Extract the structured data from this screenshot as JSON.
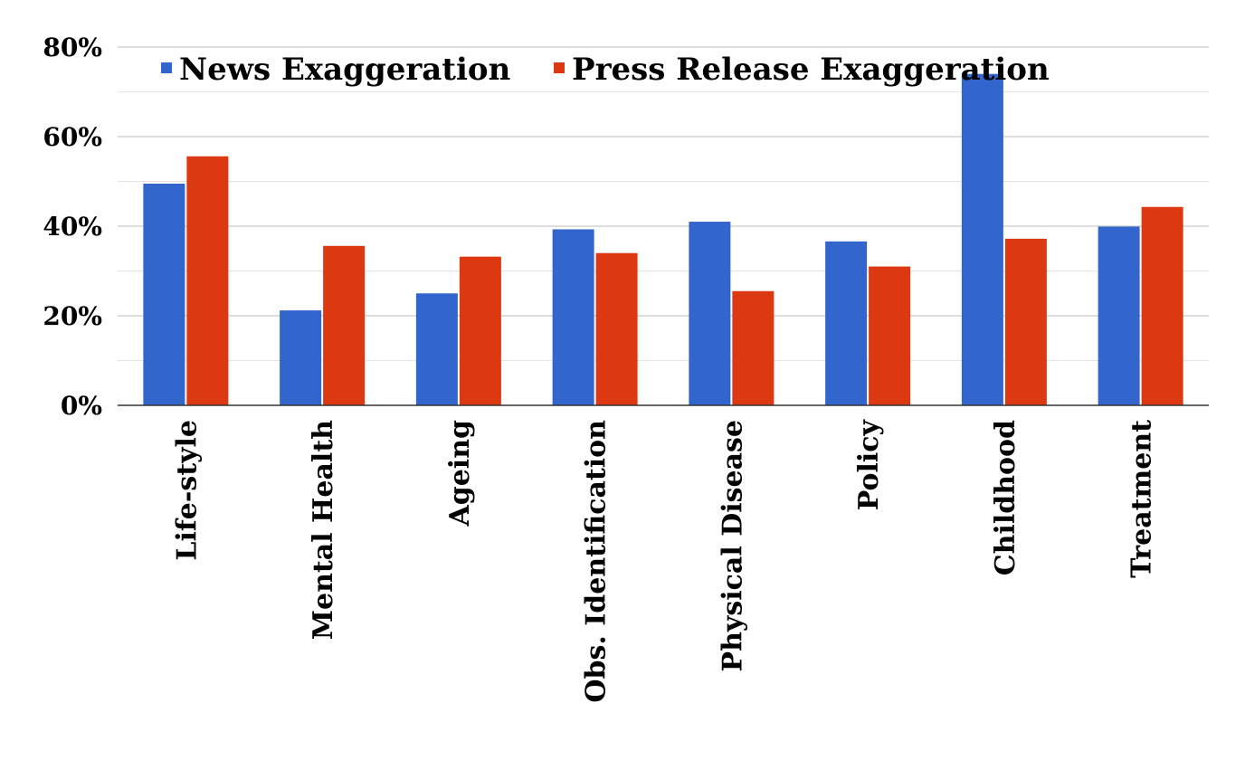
{
  "chart_data": {
    "type": "bar",
    "categories": [
      "Life-style",
      "Mental Health",
      "Ageing",
      "Obs. Identification",
      "Physical Disease",
      "Policy",
      "Childhood",
      "Treatment"
    ],
    "series": [
      {
        "name": "News Exaggeration",
        "color": "#3366cc",
        "values": [
          49.5,
          21.2,
          25.0,
          39.3,
          41.0,
          36.6,
          74.0,
          39.9
        ]
      },
      {
        "name": "Press Release Exaggeration",
        "color": "#dc3912",
        "values": [
          55.6,
          35.6,
          33.2,
          34.0,
          25.5,
          31.0,
          37.2,
          44.3
        ]
      }
    ],
    "y_ticks": [
      "0%",
      "20%",
      "40%",
      "60%",
      "80%"
    ],
    "ylim": [
      0,
      80
    ],
    "grid": true,
    "legend_position": "top",
    "title": "",
    "xlabel": "",
    "ylabel": ""
  }
}
